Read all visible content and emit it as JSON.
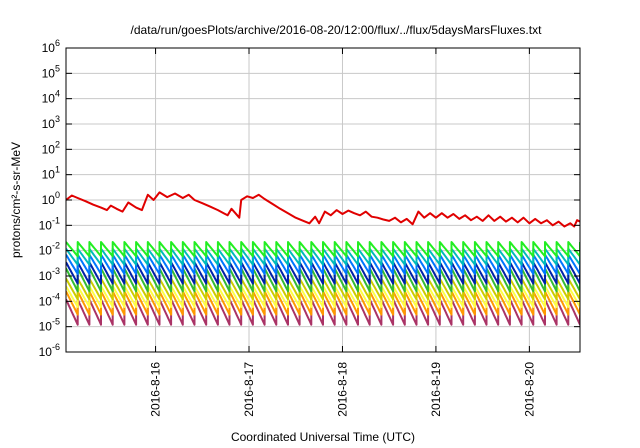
{
  "chart_data": {
    "type": "line",
    "title": "/data/run/goesPlots/archive/2016-08-20/12:00/flux/../flux/5daysMarsFluxes.txt",
    "xlabel": "Coordinated Universal Time (UTC)",
    "ylabel": "protons/cm²-s-sr-MeV",
    "yscale": "log",
    "ylim": [
      1e-06,
      1000000.0
    ],
    "xlim": [
      "2016-08-15T01:00",
      "2016-08-20T13:00"
    ],
    "x_tick_labels": [
      "2016-8-16",
      "2016-8-17",
      "2016-8-18",
      "2016-8-19",
      "2016-8-20"
    ],
    "x_ticks": [
      "2016-08-16T00:00",
      "2016-08-17T00:00",
      "2016-08-18T00:00",
      "2016-08-19T00:00",
      "2016-08-20T00:00"
    ],
    "y_tick_exponents": [
      -6,
      -5,
      -4,
      -3,
      -2,
      -1,
      0,
      1,
      2,
      3,
      4,
      5,
      6
    ],
    "grid": true,
    "series": [
      {
        "color": "#e00000",
        "points": [
          [
            "2016-08-15T01:00",
            1.0
          ],
          [
            "2016-08-15T02:30",
            1.5
          ],
          [
            "2016-08-15T04:00",
            1.2
          ],
          [
            "2016-08-15T06:00",
            0.9
          ],
          [
            "2016-08-15T08:00",
            0.65
          ],
          [
            "2016-08-15T10:00",
            0.5
          ],
          [
            "2016-08-15T11:30",
            0.4
          ],
          [
            "2016-08-15T12:30",
            0.6
          ],
          [
            "2016-08-15T14:00",
            0.45
          ],
          [
            "2016-08-15T15:30",
            0.35
          ],
          [
            "2016-08-15T17:00",
            0.8
          ],
          [
            "2016-08-15T19:00",
            0.5
          ],
          [
            "2016-08-15T20:30",
            0.4
          ],
          [
            "2016-08-15T22:00",
            1.6
          ],
          [
            "2016-08-15T23:30",
            1.0
          ],
          [
            "2016-08-16T01:00",
            2.0
          ],
          [
            "2016-08-16T03:00",
            1.3
          ],
          [
            "2016-08-16T05:00",
            1.8
          ],
          [
            "2016-08-16T07:00",
            1.2
          ],
          [
            "2016-08-16T08:30",
            1.6
          ],
          [
            "2016-08-16T10:00",
            1.0
          ],
          [
            "2016-08-16T12:00",
            0.75
          ],
          [
            "2016-08-16T14:00",
            0.55
          ],
          [
            "2016-08-16T16:00",
            0.4
          ],
          [
            "2016-08-16T17:30",
            0.3
          ],
          [
            "2016-08-16T18:30",
            0.25
          ],
          [
            "2016-08-16T19:30",
            0.45
          ],
          [
            "2016-08-16T20:30",
            0.3
          ],
          [
            "2016-08-16T21:30",
            0.2
          ],
          [
            "2016-08-16T22:00",
            1.0
          ],
          [
            "2016-08-16T23:30",
            1.4
          ],
          [
            "2016-08-17T01:00",
            1.2
          ],
          [
            "2016-08-17T02:30",
            1.6
          ],
          [
            "2016-08-17T04:00",
            1.1
          ],
          [
            "2016-08-17T06:00",
            0.7
          ],
          [
            "2016-08-17T08:00",
            0.45
          ],
          [
            "2016-08-17T10:00",
            0.3
          ],
          [
            "2016-08-17T12:00",
            0.2
          ],
          [
            "2016-08-17T14:00",
            0.15
          ],
          [
            "2016-08-17T15:30",
            0.12
          ],
          [
            "2016-08-17T17:00",
            0.22
          ],
          [
            "2016-08-17T18:00",
            0.12
          ],
          [
            "2016-08-17T19:30",
            0.35
          ],
          [
            "2016-08-17T21:00",
            0.25
          ],
          [
            "2016-08-17T22:30",
            0.4
          ],
          [
            "2016-08-18T00:00",
            0.28
          ],
          [
            "2016-08-18T01:30",
            0.38
          ],
          [
            "2016-08-18T03:00",
            0.3
          ],
          [
            "2016-08-18T04:30",
            0.25
          ],
          [
            "2016-08-18T06:00",
            0.35
          ],
          [
            "2016-08-18T07:30",
            0.22
          ],
          [
            "2016-08-18T09:00",
            0.2
          ],
          [
            "2016-08-18T10:30",
            0.17
          ],
          [
            "2016-08-18T12:00",
            0.15
          ],
          [
            "2016-08-18T13:30",
            0.2
          ],
          [
            "2016-08-18T15:00",
            0.13
          ],
          [
            "2016-08-18T16:30",
            0.18
          ],
          [
            "2016-08-18T18:00",
            0.11
          ],
          [
            "2016-08-18T19:30",
            0.35
          ],
          [
            "2016-08-18T21:00",
            0.2
          ],
          [
            "2016-08-18T22:30",
            0.3
          ],
          [
            "2016-08-19T00:00",
            0.2
          ],
          [
            "2016-08-19T01:30",
            0.3
          ],
          [
            "2016-08-19T03:00",
            0.2
          ],
          [
            "2016-08-19T04:30",
            0.28
          ],
          [
            "2016-08-19T06:00",
            0.18
          ],
          [
            "2016-08-19T07:30",
            0.25
          ],
          [
            "2016-08-19T09:00",
            0.16
          ],
          [
            "2016-08-19T10:30",
            0.22
          ],
          [
            "2016-08-19T12:00",
            0.15
          ],
          [
            "2016-08-19T13:30",
            0.25
          ],
          [
            "2016-08-19T15:00",
            0.15
          ],
          [
            "2016-08-19T16:30",
            0.22
          ],
          [
            "2016-08-19T18:00",
            0.14
          ],
          [
            "2016-08-19T19:30",
            0.2
          ],
          [
            "2016-08-19T21:00",
            0.13
          ],
          [
            "2016-08-19T22:30",
            0.2
          ],
          [
            "2016-08-20T00:00",
            0.12
          ],
          [
            "2016-08-20T01:30",
            0.18
          ],
          [
            "2016-08-20T03:00",
            0.12
          ],
          [
            "2016-08-20T04:30",
            0.16
          ],
          [
            "2016-08-20T06:00",
            0.1
          ],
          [
            "2016-08-20T07:30",
            0.14
          ],
          [
            "2016-08-20T09:00",
            0.09
          ],
          [
            "2016-08-20T10:30",
            0.12
          ],
          [
            "2016-08-20T11:30",
            0.09
          ],
          [
            "2016-08-20T12:15",
            0.16
          ],
          [
            "2016-08-20T13:00",
            0.14
          ]
        ]
      },
      {
        "color": "#22ee22",
        "sawtooth": {
          "period_hours": 3,
          "peak": 0.022,
          "trough": 0.006
        }
      },
      {
        "color": "#00bbbb",
        "sawtooth": {
          "period_hours": 3,
          "peak": 0.012,
          "trough": 0.0028
        }
      },
      {
        "color": "#0077ff",
        "sawtooth": {
          "period_hours": 3,
          "peak": 0.007,
          "trough": 0.0012
        }
      },
      {
        "color": "#0022aa",
        "sawtooth": {
          "period_hours": 3,
          "peak": 0.0035,
          "trough": 0.0005
        }
      },
      {
        "color": "#33bb33",
        "sawtooth": {
          "period_hours": 3,
          "peak": 0.002,
          "trough": 0.00025
        }
      },
      {
        "color": "#cccc00",
        "sawtooth": {
          "period_hours": 3,
          "peak": 0.0008,
          "trough": 0.00012
        }
      },
      {
        "color": "#ffff44",
        "sawtooth": {
          "period_hours": 3,
          "peak": 0.0004,
          "trough": 6e-05
        }
      },
      {
        "color": "#ff9900",
        "sawtooth": {
          "period_hours": 3,
          "peak": 0.00025,
          "trough": 3e-05
        }
      },
      {
        "color": "#aa3366",
        "sawtooth": {
          "period_hours": 3,
          "peak": 0.00012,
          "trough": 1.2e-05
        }
      }
    ]
  }
}
